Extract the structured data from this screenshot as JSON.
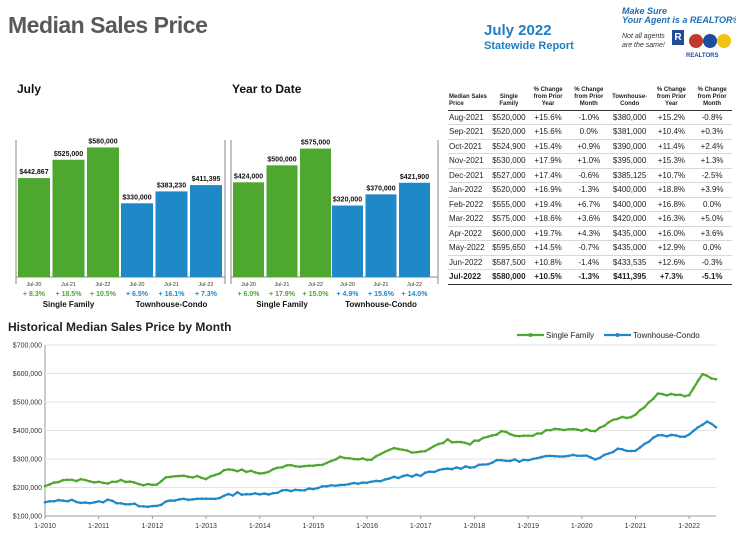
{
  "header": {
    "title": "Median Sales Price",
    "period": "July 2022",
    "subtitle": "Statewide Report"
  },
  "logo": {
    "line1": "Make Sure",
    "line2": "Your Agent is a REALTOR®",
    "note": "Not all agents are the same!",
    "badge": "R",
    "org": "REALTORS"
  },
  "colors": {
    "single_family": "#4ea72e",
    "townhouse": "#1f88c9"
  },
  "chart_data": [
    {
      "type": "bar",
      "title": "July",
      "categories": [
        "Jul-20",
        "Jul-21",
        "Jul-22"
      ],
      "series": [
        {
          "name": "Single Family",
          "values": [
            442867,
            525000,
            580000
          ],
          "value_labels": [
            "$442,867",
            "$525,000",
            "$580,000"
          ],
          "change_labels": [
            "+ 8.3%",
            "+ 18.5%",
            "+ 10.5%"
          ]
        },
        {
          "name": "Townhouse-Condo",
          "values": [
            330000,
            383230,
            411395
          ],
          "value_labels": [
            "$330,000",
            "$383,230",
            "$411,395"
          ],
          "change_labels": [
            "+ 6.5%",
            "+ 16.1%",
            "+ 7.3%"
          ]
        }
      ]
    },
    {
      "type": "bar",
      "title": "Year to Date",
      "categories": [
        "Jul-20",
        "Jul-21",
        "Jul-22"
      ],
      "series": [
        {
          "name": "Single Family",
          "values": [
            424000,
            500000,
            575000
          ],
          "value_labels": [
            "$424,000",
            "$500,000",
            "$575,000"
          ],
          "change_labels": [
            "+ 6.0%",
            "+ 17.9%",
            "+ 15.0%"
          ]
        },
        {
          "name": "Townhouse-Condo",
          "values": [
            320000,
            370000,
            421900
          ],
          "value_labels": [
            "$320,000",
            "$370,000",
            "$421,900"
          ],
          "change_labels": [
            "+ 4.9%",
            "+ 15.6%",
            "+ 14.0%"
          ]
        }
      ]
    },
    {
      "type": "table",
      "columns": [
        "Median Sales Price",
        "Single Family",
        "% Change from Prior Year",
        "% Change from Prior Month",
        "Townhouse-Condo",
        "% Change from Prior Year",
        "% Change from Prior Month"
      ],
      "rows": [
        [
          "Aug-2021",
          "$520,000",
          "+15.6%",
          "-1.0%",
          "$380,000",
          "+15.2%",
          "-0.8%"
        ],
        [
          "Sep-2021",
          "$520,000",
          "+15.6%",
          "0.0%",
          "$381,000",
          "+10.4%",
          "+0.3%"
        ],
        [
          "Oct-2021",
          "$524,900",
          "+15.4%",
          "+0.9%",
          "$390,000",
          "+11.4%",
          "+2.4%"
        ],
        [
          "Nov-2021",
          "$530,000",
          "+17.9%",
          "+1.0%",
          "$395,000",
          "+15.3%",
          "+1.3%"
        ],
        [
          "Dec-2021",
          "$527,000",
          "+17.4%",
          "-0.6%",
          "$385,125",
          "+10.7%",
          "-2.5%"
        ],
        [
          "Jan-2022",
          "$520,000",
          "+16.9%",
          "-1.3%",
          "$400,000",
          "+18.8%",
          "+3.9%"
        ],
        [
          "Feb-2022",
          "$555,000",
          "+19.4%",
          "+6.7%",
          "$400,000",
          "+16.8%",
          "0.0%"
        ],
        [
          "Mar-2022",
          "$575,000",
          "+18.6%",
          "+3.6%",
          "$420,000",
          "+16.3%",
          "+5.0%"
        ],
        [
          "Apr-2022",
          "$600,000",
          "+19.7%",
          "+4.3%",
          "$435,000",
          "+16.0%",
          "+3.6%"
        ],
        [
          "May-2022",
          "$595,650",
          "+14.5%",
          "-0.7%",
          "$435,000",
          "+12.9%",
          "0.0%"
        ],
        [
          "Jun-2022",
          "$587,500",
          "+10.8%",
          "-1.4%",
          "$433,535",
          "+12.6%",
          "-0.3%"
        ],
        [
          "Jul-2022",
          "$580,000",
          "+10.5%",
          "-1.3%",
          "$411,395",
          "+7.3%",
          "-5.1%"
        ]
      ]
    },
    {
      "type": "line",
      "title": "Historical Median Sales Price by Month",
      "ylim": [
        100000,
        700000
      ],
      "yticks": [
        "$100,000",
        "$200,000",
        "$300,000",
        "$400,000",
        "$500,000",
        "$600,000",
        "$700,000"
      ],
      "xticks": [
        "1-2010",
        "1-2011",
        "1-2012",
        "1-2013",
        "1-2014",
        "1-2015",
        "1-2016",
        "1-2017",
        "1-2018",
        "1-2019",
        "1-2020",
        "1-2021",
        "1-2022"
      ],
      "legend": "top-right",
      "x_range": [
        "2010-01",
        "2022-07"
      ],
      "series": [
        {
          "name": "Single Family",
          "keypoints": [
            [
              "2010-01",
              205000
            ],
            [
              "2010-05",
              228000
            ],
            [
              "2010-10",
              225000
            ],
            [
              "2011-02",
              215000
            ],
            [
              "2011-06",
              225000
            ],
            [
              "2011-10",
              215000
            ],
            [
              "2012-01",
              205000
            ],
            [
              "2012-05",
              240000
            ],
            [
              "2012-09",
              240000
            ],
            [
              "2013-01",
              232000
            ],
            [
              "2013-06",
              265000
            ],
            [
              "2013-11",
              255000
            ],
            [
              "2014-02",
              250000
            ],
            [
              "2014-07",
              280000
            ],
            [
              "2014-12",
              275000
            ],
            [
              "2015-02",
              275000
            ],
            [
              "2015-07",
              305000
            ],
            [
              "2015-12",
              300000
            ],
            [
              "2016-02",
              300000
            ],
            [
              "2016-07",
              335000
            ],
            [
              "2016-12",
              325000
            ],
            [
              "2017-02",
              330000
            ],
            [
              "2017-07",
              365000
            ],
            [
              "2017-12",
              355000
            ],
            [
              "2018-02",
              365000
            ],
            [
              "2018-07",
              395000
            ],
            [
              "2018-12",
              380000
            ],
            [
              "2019-02",
              380000
            ],
            [
              "2019-07",
              410000
            ],
            [
              "2019-12",
              400000
            ],
            [
              "2020-02",
              405000
            ],
            [
              "2020-04",
              400000
            ],
            [
              "2020-08",
              440000
            ],
            [
              "2020-12",
              450000
            ],
            [
              "2021-02",
              470000
            ],
            [
              "2021-06",
              530000
            ],
            [
              "2021-10",
              525000
            ],
            [
              "2022-01",
              520000
            ],
            [
              "2022-04",
              600000
            ],
            [
              "2022-07",
              580000
            ]
          ]
        },
        {
          "name": "Townhouse-Condo",
          "keypoints": [
            [
              "2010-01",
              148000
            ],
            [
              "2010-06",
              155000
            ],
            [
              "2010-12",
              145000
            ],
            [
              "2011-03",
              155000
            ],
            [
              "2011-08",
              140000
            ],
            [
              "2012-01",
              135000
            ],
            [
              "2012-06",
              155000
            ],
            [
              "2012-12",
              160000
            ],
            [
              "2013-03",
              162000
            ],
            [
              "2013-08",
              180000
            ],
            [
              "2014-01",
              175000
            ],
            [
              "2014-07",
              190000
            ],
            [
              "2015-01",
              195000
            ],
            [
              "2015-07",
              210000
            ],
            [
              "2016-01",
              215000
            ],
            [
              "2016-07",
              235000
            ],
            [
              "2017-01",
              245000
            ],
            [
              "2017-07",
              265000
            ],
            [
              "2018-01",
              275000
            ],
            [
              "2018-07",
              295000
            ],
            [
              "2019-01",
              295000
            ],
            [
              "2019-07",
              312000
            ],
            [
              "2020-01",
              315000
            ],
            [
              "2020-04",
              300000
            ],
            [
              "2020-09",
              335000
            ],
            [
              "2021-01",
              330000
            ],
            [
              "2021-06",
              385000
            ],
            [
              "2021-12",
              380000
            ],
            [
              "2022-02",
              400000
            ],
            [
              "2022-05",
              435000
            ],
            [
              "2022-07",
              411395
            ]
          ]
        }
      ]
    }
  ]
}
